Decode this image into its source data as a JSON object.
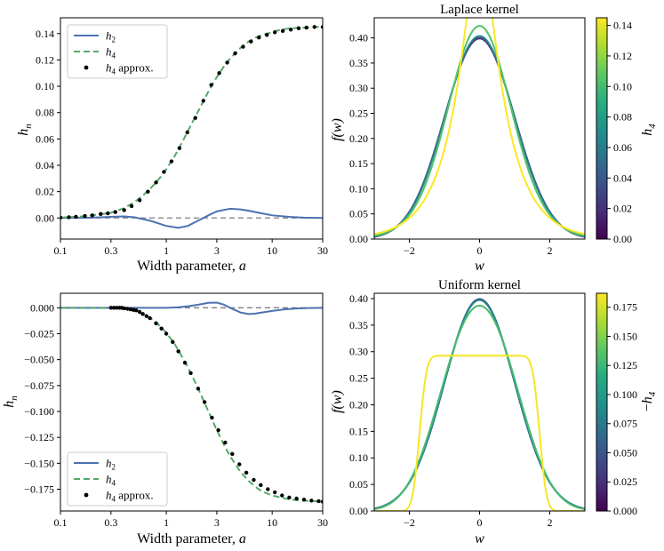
{
  "colors": {
    "h2": "#4c72b0",
    "h4": "#55a868",
    "approx": "#000000",
    "zero_line": "#7f7f7f"
  },
  "chart_data": [
    {
      "id": "ax1",
      "type": "line",
      "title": "",
      "xlabel_text": "Width parameter, ",
      "xlabel_var": "a",
      "ylabel_main": "h",
      "ylabel_sub": "n",
      "xscale": "log",
      "xlim": [
        0.1,
        30
      ],
      "ylim": [
        -0.016,
        0.152
      ],
      "xticks": [
        0.1,
        0.3,
        1,
        3,
        10,
        30
      ],
      "xtick_labels": [
        "0.1",
        "0.3",
        "1",
        "3",
        "10",
        "30"
      ],
      "yticks": [
        0.0,
        0.02,
        0.04,
        0.06,
        0.08,
        0.1,
        0.12,
        0.14
      ],
      "ytick_labels": [
        "0.00",
        "0.02",
        "0.04",
        "0.06",
        "0.08",
        "0.10",
        "0.12",
        "0.14"
      ],
      "legend": {
        "position": "upper-left",
        "entries": [
          {
            "main": "h",
            "sub": "2",
            "suffix": ""
          },
          {
            "main": "h",
            "sub": "4",
            "suffix": ""
          },
          {
            "main": "h",
            "sub": "4",
            "suffix": " approx."
          }
        ]
      },
      "series": [
        {
          "name": "h2",
          "style": "solid",
          "x": [
            0.1,
            0.2,
            0.3,
            0.4,
            0.5,
            0.7,
            1.0,
            1.3,
            1.6,
            2.0,
            2.5,
            3.0,
            4.0,
            5.0,
            6.0,
            8.0,
            10,
            15,
            20,
            30
          ],
          "y": [
            0.0,
            0.0003,
            0.0009,
            0.0012,
            0.0005,
            -0.002,
            -0.006,
            -0.0075,
            -0.006,
            -0.002,
            0.002,
            0.005,
            0.007,
            0.0065,
            0.0055,
            0.0035,
            0.002,
            0.0008,
            0.0003,
            0.0
          ]
        },
        {
          "name": "h4",
          "style": "dashed",
          "x": [
            0.1,
            0.15,
            0.2,
            0.3,
            0.4,
            0.5,
            0.6,
            0.7,
            0.8,
            0.9,
            1.0,
            1.2,
            1.4,
            1.6,
            1.8,
            2.0,
            2.5,
            3.0,
            3.5,
            4.0,
            5.0,
            6.0,
            7.0,
            8.0,
            10,
            12,
            15,
            20,
            25,
            30
          ],
          "y": [
            0.0003,
            0.001,
            0.002,
            0.004,
            0.0075,
            0.012,
            0.017,
            0.022,
            0.027,
            0.032,
            0.037,
            0.047,
            0.057,
            0.066,
            0.074,
            0.081,
            0.096,
            0.107,
            0.115,
            0.121,
            0.129,
            0.134,
            0.137,
            0.139,
            0.141,
            0.143,
            0.144,
            0.1445,
            0.145,
            0.145
          ]
        },
        {
          "name": "h4 approx.",
          "style": "dots",
          "x": [
            0.1,
            0.12,
            0.14,
            0.17,
            0.2,
            0.24,
            0.28,
            0.33,
            0.4,
            0.47,
            0.56,
            0.67,
            0.8,
            0.95,
            1.12,
            1.33,
            1.58,
            1.88,
            2.24,
            2.66,
            3.16,
            3.76,
            4.47,
            5.31,
            6.31,
            7.5,
            8.91,
            10.6,
            12.6,
            15.0,
            17.8,
            21.1,
            25.1,
            30
          ],
          "y": [
            0.0003,
            0.0006,
            0.0009,
            0.0015,
            0.002,
            0.003,
            0.0035,
            0.0045,
            0.006,
            0.009,
            0.0135,
            0.02,
            0.027,
            0.035,
            0.043,
            0.053,
            0.065,
            0.076,
            0.089,
            0.101,
            0.11,
            0.118,
            0.125,
            0.13,
            0.134,
            0.137,
            0.139,
            0.141,
            0.142,
            0.143,
            0.144,
            0.1445,
            0.145,
            0.145
          ]
        }
      ]
    },
    {
      "id": "ax2",
      "type": "line",
      "title": "Laplace kernel",
      "xlabel_var": "w",
      "ylabel_text": "f(w)",
      "xlim": [
        -3,
        3
      ],
      "ylim": [
        0,
        0.44
      ],
      "xticks": [
        -2,
        0,
        2
      ],
      "xtick_labels": [
        "−2",
        "0",
        "2"
      ],
      "yticks": [
        0.0,
        0.05,
        0.1,
        0.15,
        0.2,
        0.25,
        0.3,
        0.35,
        0.4
      ],
      "ytick_labels": [
        "0.00",
        "0.05",
        "0.10",
        "0.15",
        "0.20",
        "0.25",
        "0.30",
        "0.35",
        "0.40"
      ],
      "curve_values": [
        0.0,
        0.03,
        0.065,
        0.105,
        0.145
      ],
      "curve_mix": [
        0.0,
        0.22,
        0.45,
        0.7,
        1.0
      ],
      "colorbar": {
        "label_main": "h",
        "label_sub": "4",
        "label_prefix": "",
        "range": [
          0,
          0.145
        ],
        "ticks": [
          0.0,
          0.02,
          0.04,
          0.06,
          0.08,
          0.1,
          0.12,
          0.14
        ],
        "tick_labels": [
          "0.00",
          "0.02",
          "0.04",
          "0.06",
          "0.08",
          "0.10",
          "0.12",
          "0.14"
        ]
      }
    },
    {
      "id": "ax3",
      "type": "line",
      "title": "",
      "xlabel_text": "Width parameter, ",
      "xlabel_var": "a",
      "ylabel_main": "h",
      "ylabel_sub": "n",
      "xscale": "log",
      "xlim": [
        0.1,
        30
      ],
      "ylim": [
        -0.196,
        0.014
      ],
      "xticks": [
        0.1,
        0.3,
        1,
        3,
        10,
        30
      ],
      "xtick_labels": [
        "0.1",
        "0.3",
        "1",
        "3",
        "10",
        "30"
      ],
      "yticks": [
        0.0,
        -0.025,
        -0.05,
        -0.075,
        -0.1,
        -0.125,
        -0.15,
        -0.175
      ],
      "ytick_labels": [
        "0.000",
        "−0.025",
        "−0.050",
        "−0.075",
        "−0.100",
        "−0.125",
        "−0.150",
        "−0.175"
      ],
      "legend": {
        "position": "lower-left",
        "entries": [
          {
            "main": "h",
            "sub": "2",
            "suffix": ""
          },
          {
            "main": "h",
            "sub": "4",
            "suffix": ""
          },
          {
            "main": "h",
            "sub": "4",
            "suffix": " approx."
          }
        ]
      },
      "series": [
        {
          "name": "h2",
          "style": "solid",
          "x": [
            0.1,
            0.3,
            0.5,
            0.7,
            1.0,
            1.3,
            1.6,
            2.0,
            2.5,
            3.0,
            3.5,
            4.0,
            5.0,
            6.0,
            7.0,
            8.0,
            10,
            13,
            17,
            22,
            30
          ],
          "y": [
            0.0,
            0.0,
            0.0,
            0.0,
            0.0,
            0.0005,
            0.0015,
            0.003,
            0.0048,
            0.005,
            0.003,
            0.0,
            -0.0045,
            -0.006,
            -0.0055,
            -0.0045,
            -0.003,
            -0.0015,
            -0.0007,
            -0.0003,
            0.0
          ]
        },
        {
          "name": "h4",
          "style": "dashed",
          "x": [
            0.1,
            0.2,
            0.3,
            0.4,
            0.5,
            0.6,
            0.7,
            0.8,
            1.0,
            1.2,
            1.5,
            1.8,
            2.0,
            2.5,
            3.0,
            3.5,
            4.0,
            5.0,
            6.0,
            7.0,
            8.0,
            10,
            12,
            15,
            20,
            25,
            30
          ],
          "y": [
            0.0,
            0.0,
            -0.0003,
            -0.0012,
            -0.003,
            -0.006,
            -0.0095,
            -0.014,
            -0.024,
            -0.035,
            -0.052,
            -0.068,
            -0.078,
            -0.1,
            -0.118,
            -0.132,
            -0.143,
            -0.158,
            -0.167,
            -0.173,
            -0.177,
            -0.181,
            -0.183,
            -0.185,
            -0.186,
            -0.1865,
            -0.187
          ]
        },
        {
          "name": "h4 approx.",
          "style": "dots",
          "x": [
            0.3,
            0.32,
            0.34,
            0.36,
            0.38,
            0.4,
            0.43,
            0.46,
            0.49,
            0.52,
            0.56,
            0.6,
            0.65,
            0.7,
            0.8,
            0.9,
            1.0,
            1.15,
            1.3,
            1.5,
            1.7,
            2.0,
            2.3,
            2.7,
            3.1,
            3.6,
            4.2,
            4.9,
            5.7,
            6.7,
            7.8,
            9.1,
            10.6,
            12.4,
            14.5,
            17,
            20,
            23.5,
            27.5,
            30
          ],
          "y": [
            0.0,
            0.0,
            0.0,
            0.0,
            0.0,
            -0.0005,
            -0.001,
            -0.0015,
            -0.002,
            -0.0025,
            -0.004,
            -0.006,
            -0.008,
            -0.01,
            -0.015,
            -0.02,
            -0.025,
            -0.033,
            -0.042,
            -0.053,
            -0.063,
            -0.078,
            -0.091,
            -0.106,
            -0.118,
            -0.13,
            -0.141,
            -0.151,
            -0.159,
            -0.166,
            -0.171,
            -0.175,
            -0.178,
            -0.181,
            -0.183,
            -0.184,
            -0.185,
            -0.186,
            -0.1865,
            -0.187
          ]
        }
      ]
    },
    {
      "id": "ax4",
      "type": "line",
      "title": "Uniform kernel",
      "xlabel_var": "w",
      "ylabel_text": "f(w)",
      "xlim": [
        -3,
        3
      ],
      "ylim": [
        0,
        0.41
      ],
      "xticks": [
        -2,
        0,
        2
      ],
      "xtick_labels": [
        "−2",
        "0",
        "2"
      ],
      "yticks": [
        0.0,
        0.05,
        0.1,
        0.15,
        0.2,
        0.25,
        0.3,
        0.35,
        0.4
      ],
      "ytick_labels": [
        "0.00",
        "0.05",
        "0.10",
        "0.15",
        "0.20",
        "0.25",
        "0.30",
        "0.35",
        "0.40"
      ],
      "curve_values": [
        0.0,
        0.04,
        0.085,
        0.13,
        0.185
      ],
      "curve_mix": [
        0.0,
        0.2,
        0.4,
        0.62,
        1.0
      ],
      "colorbar": {
        "label_main": "h",
        "label_sub": "4",
        "label_prefix": "−",
        "range": [
          0,
          0.187
        ],
        "ticks": [
          0.0,
          0.025,
          0.05,
          0.075,
          0.1,
          0.125,
          0.15,
          0.175
        ],
        "tick_labels": [
          "0.000",
          "0.025",
          "0.050",
          "0.075",
          "0.100",
          "0.125",
          "0.150",
          "0.175"
        ]
      }
    }
  ]
}
